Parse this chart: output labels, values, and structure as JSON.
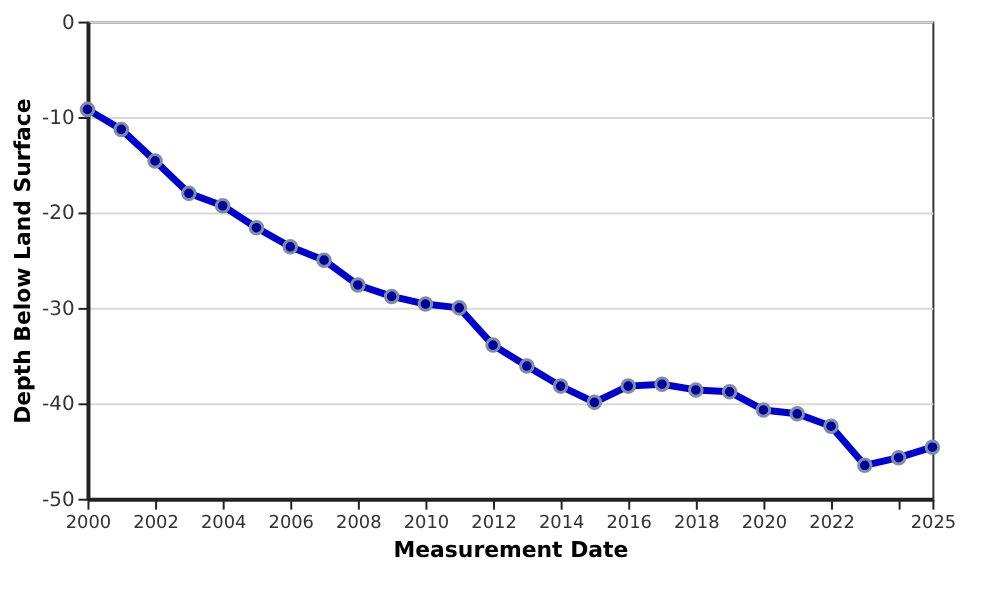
{
  "chart_data": {
    "type": "line",
    "xlabel": "Measurement Date",
    "ylabel": "Depth Below Land Surface",
    "x": [
      2000,
      2001,
      2002,
      2003,
      2004,
      2005,
      2006,
      2007,
      2008,
      2009,
      2010,
      2011,
      2012,
      2013,
      2014,
      2015,
      2016,
      2017,
      2018,
      2019,
      2020,
      2021,
      2022,
      2023,
      2024,
      2025
    ],
    "series": [
      {
        "color": "#0000d0",
        "values": [
          -9.2,
          -11.3,
          -14.6,
          -18,
          -19.3,
          -21.6,
          -23.6,
          -25,
          -27.6,
          -28.8,
          -29.6,
          -30,
          -33.9,
          -36.1,
          -38.2,
          -39.9,
          -38.2,
          -38,
          -38.6,
          -38.8,
          -40.7,
          -41.1,
          -42.4,
          -46.5,
          -45.7,
          -44.6
        ]
      }
    ],
    "xlim": [
      2000,
      2025
    ],
    "xticks": [
      2000,
      2002,
      2004,
      2006,
      2008,
      2010,
      2012,
      2014,
      2016,
      2018,
      2020,
      2022,
      {
        "value": 2024,
        "label": null
      },
      2025
    ],
    "ylim": [
      -50,
      0
    ],
    "yticks": [
      -50,
      -40,
      -30,
      -20,
      -10,
      0
    ],
    "grid": "y",
    "marker": "circle",
    "line_style": "solid"
  }
}
